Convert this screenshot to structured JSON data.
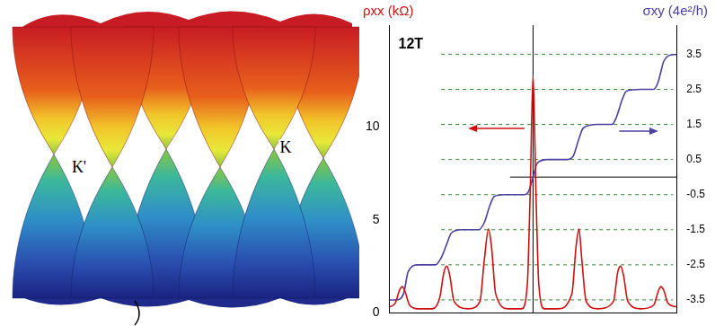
{
  "band_diagram": {
    "labels": [
      "K'",
      "K"
    ]
  },
  "chart_data": {
    "type": "line",
    "title": "12T",
    "y_label": "ρxx (kΩ)",
    "y2_label": "σxy (4e²/h)",
    "xlim": [
      -1,
      1
    ],
    "ylim": [
      0,
      15.5
    ],
    "yticks": [
      0,
      5,
      10
    ],
    "y2lim": [
      -3.86,
      4.33
    ],
    "y2ticks": [
      -3.5,
      -2.5,
      -1.5,
      -0.5,
      0.5,
      1.5,
      2.5,
      3.5
    ],
    "grid": true,
    "tick_labels": "y",
    "reference_lines": [
      {
        "axis": "x",
        "value": 0
      },
      {
        "axis": "y2",
        "value": 0
      }
    ],
    "series": [
      {
        "name": "ρxx",
        "color": "#d01010",
        "x": [
          -1,
          -0.96,
          -0.93,
          -0.91,
          -0.89,
          -0.86,
          -0.8,
          -0.7,
          -0.65,
          -0.62,
          -0.6,
          -0.58,
          -0.55,
          -0.45,
          -0.37,
          -0.34,
          -0.31,
          -0.29,
          -0.26,
          -0.17,
          -0.08,
          -0.04,
          -0.02,
          0,
          0.02,
          0.04,
          0.08,
          0.17,
          0.27,
          0.3,
          0.32,
          0.34,
          0.37,
          0.45,
          0.56,
          0.59,
          0.61,
          0.63,
          0.66,
          0.75,
          0.84,
          0.87,
          0.89,
          0.91,
          0.94,
          1
        ],
        "values": [
          0.3,
          0.5,
          1.2,
          1.4,
          1.1,
          0.4,
          0.2,
          0.2,
          0.8,
          2.2,
          2.5,
          2.0,
          0.6,
          0.2,
          0.6,
          2.8,
          4.5,
          3.6,
          1.0,
          0.2,
          0.2,
          1.5,
          6.5,
          12.8,
          6.5,
          1.5,
          0.2,
          0.2,
          1.0,
          3.6,
          4.5,
          2.8,
          0.6,
          0.2,
          0.6,
          2.2,
          2.5,
          2.0,
          0.6,
          0.2,
          0.4,
          1.1,
          1.4,
          1.2,
          0.5,
          0.3
        ]
      },
      {
        "name": "σxy",
        "color": "#4b3fa0",
        "axis": "y2",
        "x": [
          -1,
          -0.95,
          -0.9,
          -0.87,
          -0.8,
          -0.68,
          -0.64,
          -0.6,
          -0.57,
          -0.5,
          -0.38,
          -0.34,
          -0.3,
          -0.27,
          -0.2,
          -0.06,
          -0.03,
          0,
          0.03,
          0.1,
          0.24,
          0.28,
          0.32,
          0.35,
          0.45,
          0.55,
          0.58,
          0.62,
          0.65,
          0.75,
          0.84,
          0.87,
          0.91,
          0.94,
          1
        ],
        "values": [
          -3.5,
          -3.5,
          -3.3,
          -2.7,
          -2.5,
          -2.5,
          -2.3,
          -1.9,
          -1.6,
          -1.5,
          -1.5,
          -1.3,
          -0.8,
          -0.55,
          -0.5,
          -0.5,
          -0.4,
          0,
          0.4,
          0.5,
          0.5,
          0.6,
          1.1,
          1.4,
          1.5,
          1.5,
          1.7,
          2.2,
          2.45,
          2.5,
          2.5,
          2.7,
          3.3,
          3.45,
          3.5
        ]
      }
    ]
  }
}
